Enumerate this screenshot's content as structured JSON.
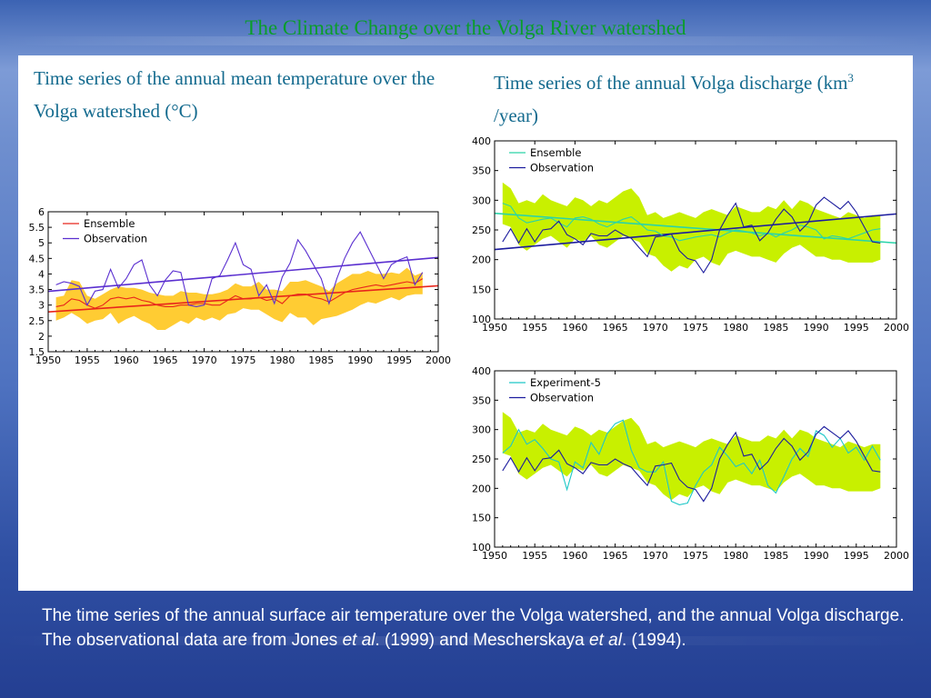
{
  "slide": {
    "title": "The Climate Change over the Volga River watershed",
    "left_heading": "Time series of the annual mean temperature over the Volga watershed (°C)",
    "right_heading_main": "Time series of the annual Volga discharge (km",
    "right_heading_sup": "3",
    "right_heading_tail": " /year)",
    "caption_part1": "The time series of the annual surface air temperature over the Volga watershed, and the annual Volga discharge. The observational data are from Jones ",
    "caption_etal1": "et al",
    "caption_part2": ". (1999) and Mescherskaya ",
    "caption_etal2": "et al",
    "caption_part3": ". (1994)."
  },
  "colors": {
    "ensemble_temp": "#e8261c",
    "observation": "#5a2fd0",
    "observation_discharge": "#1c1c9e",
    "temp_band": "#ffcc33",
    "discharge_band": "#c8f000",
    "ensemble_discharge": "#2ad4a8",
    "experiment5": "#1ec8c8",
    "title_green": "#0a9d2a",
    "heading_teal": "#136a8e"
  },
  "chart_data": [
    {
      "type": "line",
      "id": "temperature",
      "xlim": [
        1950,
        2000
      ],
      "ylim": [
        1.5,
        6
      ],
      "xticks": [
        1950,
        1955,
        1960,
        1965,
        1970,
        1975,
        1980,
        1985,
        1990,
        1995,
        2000
      ],
      "yticks": [
        1.5,
        2,
        2.5,
        3,
        3.5,
        4,
        4.5,
        5,
        5.5,
        6
      ],
      "legend_position": "top-left",
      "x": [
        1951,
        1952,
        1953,
        1954,
        1955,
        1956,
        1957,
        1958,
        1959,
        1960,
        1961,
        1962,
        1963,
        1964,
        1965,
        1966,
        1967,
        1968,
        1969,
        1970,
        1971,
        1972,
        1973,
        1974,
        1975,
        1976,
        1977,
        1978,
        1979,
        1980,
        1981,
        1982,
        1983,
        1984,
        1985,
        1986,
        1987,
        1988,
        1989,
        1990,
        1991,
        1992,
        1993,
        1994,
        1995,
        1996,
        1997,
        1998
      ],
      "series": [
        {
          "name": "Ensemble",
          "color": "#e8261c",
          "values": [
            2.95,
            3.0,
            3.2,
            3.15,
            3.0,
            2.9,
            3.0,
            3.2,
            3.25,
            3.2,
            3.25,
            3.15,
            3.1,
            3.0,
            2.95,
            2.95,
            3.0,
            3.0,
            3.05,
            3.05,
            3.0,
            3.0,
            3.15,
            3.3,
            3.2,
            3.2,
            3.25,
            3.15,
            3.2,
            3.05,
            3.3,
            3.35,
            3.35,
            3.25,
            3.2,
            3.1,
            3.25,
            3.4,
            3.5,
            3.55,
            3.6,
            3.65,
            3.6,
            3.65,
            3.7,
            3.75,
            3.7,
            3.85
          ],
          "band_upper": [
            3.25,
            3.3,
            3.8,
            3.75,
            3.3,
            3.2,
            3.35,
            3.5,
            3.6,
            3.55,
            3.55,
            3.5,
            3.4,
            3.35,
            3.3,
            3.3,
            3.45,
            3.4,
            3.4,
            3.35,
            3.35,
            3.4,
            3.5,
            3.7,
            3.6,
            3.6,
            3.75,
            3.5,
            3.5,
            3.45,
            3.75,
            3.75,
            3.8,
            3.7,
            3.6,
            3.45,
            3.7,
            3.85,
            4.0,
            4.0,
            4.1,
            4.0,
            4.0,
            4.05,
            4.0,
            4.2,
            3.95,
            4.05
          ],
          "band_lower": [
            2.5,
            2.6,
            2.75,
            2.6,
            2.4,
            2.5,
            2.55,
            2.75,
            2.4,
            2.55,
            2.65,
            2.5,
            2.4,
            2.2,
            2.2,
            2.35,
            2.5,
            2.4,
            2.6,
            2.5,
            2.6,
            2.5,
            2.7,
            2.75,
            2.9,
            2.85,
            2.85,
            2.7,
            2.55,
            2.45,
            2.75,
            2.6,
            2.6,
            2.35,
            2.55,
            2.6,
            2.65,
            2.75,
            2.85,
            3.0,
            3.1,
            3.05,
            3.15,
            3.25,
            3.15,
            3.3,
            3.35,
            3.35
          ]
        },
        {
          "name": "Observation",
          "color": "#5a2fd0",
          "values": [
            3.65,
            3.75,
            3.7,
            3.6,
            3.0,
            3.45,
            3.5,
            4.15,
            3.55,
            3.85,
            4.3,
            4.45,
            3.65,
            3.3,
            3.8,
            4.1,
            4.05,
            3.0,
            2.95,
            3.0,
            3.85,
            3.95,
            4.45,
            5.0,
            4.3,
            4.15,
            3.3,
            3.65,
            3.05,
            3.9,
            4.35,
            5.1,
            4.75,
            4.3,
            3.85,
            3.05,
            3.85,
            4.5,
            5.0,
            5.35,
            4.85,
            4.35,
            3.85,
            4.3,
            4.45,
            4.55,
            3.65,
            4.05
          ]
        }
      ],
      "trends": [
        {
          "name": "Ensemble",
          "x": [
            1950,
            2000
          ],
          "y": [
            2.78,
            3.62
          ]
        },
        {
          "name": "Observation",
          "x": [
            1950,
            2000
          ],
          "y": [
            3.44,
            4.53
          ]
        }
      ]
    },
    {
      "type": "line",
      "id": "discharge-ensemble",
      "xlim": [
        1950,
        2000
      ],
      "ylim": [
        100,
        400
      ],
      "xticks": [
        1950,
        1955,
        1960,
        1965,
        1970,
        1975,
        1980,
        1985,
        1990,
        1995,
        2000
      ],
      "yticks": [
        100,
        150,
        200,
        250,
        300,
        350,
        400
      ],
      "legend_position": "top-left",
      "x": [
        1951,
        1952,
        1953,
        1954,
        1955,
        1956,
        1957,
        1958,
        1959,
        1960,
        1961,
        1962,
        1963,
        1964,
        1965,
        1966,
        1967,
        1968,
        1969,
        1970,
        1971,
        1972,
        1973,
        1974,
        1975,
        1976,
        1977,
        1978,
        1979,
        1980,
        1981,
        1982,
        1983,
        1984,
        1985,
        1986,
        1987,
        1988,
        1989,
        1990,
        1991,
        1992,
        1993,
        1994,
        1995,
        1996,
        1997,
        1998
      ],
      "series": [
        {
          "name": "Ensemble",
          "color": "#2ad4a8",
          "values": [
            295,
            290,
            270,
            262,
            265,
            268,
            270,
            262,
            255,
            270,
            272,
            268,
            260,
            255,
            262,
            268,
            272,
            262,
            250,
            248,
            240,
            238,
            232,
            235,
            238,
            240,
            242,
            238,
            245,
            250,
            248,
            245,
            240,
            245,
            238,
            245,
            250,
            258,
            255,
            250,
            235,
            240,
            238,
            235,
            240,
            245,
            250,
            252
          ],
          "band_upper": [
            330,
            320,
            295,
            300,
            295,
            310,
            300,
            295,
            290,
            305,
            300,
            290,
            300,
            295,
            305,
            315,
            320,
            305,
            275,
            280,
            270,
            275,
            280,
            275,
            270,
            280,
            285,
            280,
            275,
            290,
            285,
            280,
            280,
            290,
            285,
            300,
            285,
            300,
            295,
            285,
            280,
            275,
            270,
            280,
            275,
            270,
            275,
            275
          ],
          "band_lower": [
            260,
            255,
            225,
            215,
            225,
            235,
            240,
            230,
            220,
            235,
            230,
            240,
            225,
            220,
            230,
            240,
            235,
            230,
            210,
            205,
            190,
            180,
            190,
            185,
            200,
            205,
            195,
            190,
            210,
            215,
            210,
            205,
            205,
            200,
            195,
            210,
            220,
            225,
            215,
            205,
            205,
            200,
            200,
            195,
            195,
            195,
            195,
            200
          ]
        },
        {
          "name": "Observation",
          "color": "#1c1c9e",
          "values": [
            230,
            252,
            228,
            252,
            230,
            250,
            252,
            265,
            242,
            235,
            225,
            244,
            240,
            240,
            250,
            242,
            236,
            220,
            205,
            238,
            240,
            243,
            215,
            202,
            198,
            178,
            200,
            250,
            275,
            295,
            255,
            258,
            232,
            245,
            268,
            285,
            272,
            248,
            262,
            292,
            305,
            295,
            285,
            298,
            280,
            255,
            230,
            228
          ]
        }
      ],
      "trends": [
        {
          "name": "Ensemble",
          "x": [
            1950,
            2000
          ],
          "y": [
            278,
            228
          ]
        },
        {
          "name": "Observation",
          "x": [
            1950,
            2000
          ],
          "y": [
            217,
            277
          ]
        }
      ]
    },
    {
      "type": "line",
      "id": "discharge-experiment5",
      "xlim": [
        1950,
        2000
      ],
      "ylim": [
        100,
        400
      ],
      "xticks": [
        1950,
        1955,
        1960,
        1965,
        1970,
        1975,
        1980,
        1985,
        1990,
        1995,
        2000
      ],
      "yticks": [
        100,
        150,
        200,
        250,
        300,
        350,
        400
      ],
      "legend_position": "top-left",
      "x": [
        1951,
        1952,
        1953,
        1954,
        1955,
        1956,
        1957,
        1958,
        1959,
        1960,
        1961,
        1962,
        1963,
        1964,
        1965,
        1966,
        1967,
        1968,
        1969,
        1970,
        1971,
        1972,
        1973,
        1974,
        1975,
        1976,
        1977,
        1978,
        1979,
        1980,
        1981,
        1982,
        1983,
        1984,
        1985,
        1986,
        1987,
        1988,
        1989,
        1990,
        1991,
        1992,
        1993,
        1994,
        1995,
        1996,
        1997,
        1998
      ],
      "band_upper": [
        330,
        320,
        295,
        300,
        295,
        310,
        300,
        295,
        290,
        305,
        300,
        290,
        300,
        295,
        305,
        315,
        320,
        305,
        275,
        280,
        270,
        275,
        280,
        275,
        270,
        280,
        285,
        280,
        275,
        290,
        285,
        280,
        280,
        290,
        285,
        300,
        285,
        300,
        295,
        285,
        280,
        275,
        270,
        280,
        275,
        270,
        275,
        275
      ],
      "band_lower": [
        260,
        255,
        225,
        215,
        225,
        235,
        240,
        230,
        220,
        235,
        230,
        240,
        225,
        220,
        230,
        240,
        235,
        230,
        210,
        205,
        190,
        180,
        190,
        185,
        200,
        205,
        195,
        190,
        210,
        215,
        210,
        205,
        205,
        200,
        195,
        210,
        220,
        225,
        215,
        205,
        205,
        200,
        200,
        195,
        195,
        195,
        195,
        200
      ],
      "series": [
        {
          "name": "Experiment-5",
          "color": "#1ec8c8",
          "values": [
            260,
            272,
            300,
            275,
            283,
            268,
            250,
            245,
            198,
            245,
            235,
            278,
            258,
            293,
            310,
            316,
            265,
            235,
            228,
            228,
            245,
            178,
            172,
            175,
            205,
            228,
            240,
            270,
            255,
            237,
            243,
            225,
            248,
            205,
            192,
            220,
            250,
            268,
            254,
            298,
            290,
            270,
            285,
            260,
            270,
            248,
            272,
            248
          ]
        },
        {
          "name": "Observation",
          "color": "#1c1c9e",
          "values": [
            230,
            252,
            228,
            252,
            230,
            250,
            252,
            265,
            242,
            235,
            225,
            244,
            240,
            240,
            250,
            242,
            236,
            220,
            205,
            238,
            240,
            243,
            215,
            202,
            198,
            178,
            200,
            250,
            275,
            295,
            255,
            258,
            232,
            245,
            268,
            285,
            272,
            248,
            262,
            292,
            305,
            295,
            285,
            298,
            280,
            255,
            230,
            228
          ]
        }
      ]
    }
  ]
}
